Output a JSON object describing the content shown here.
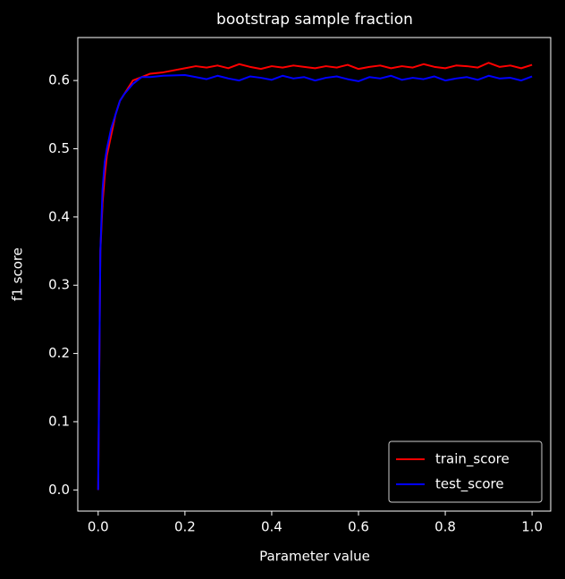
{
  "chart_data": {
    "type": "line",
    "title": "bootstrap sample fraction",
    "x_label": "Parameter value",
    "y_label": "f1 score",
    "x": [
      0,
      0.005,
      0.01,
      0.015,
      0.02,
      0.03,
      0.04,
      0.05,
      0.06,
      0.08,
      0.1,
      0.12,
      0.15,
      0.2,
      0.225,
      0.25,
      0.275,
      0.3,
      0.325,
      0.35,
      0.375,
      0.4,
      0.425,
      0.45,
      0.475,
      0.5,
      0.525,
      0.55,
      0.575,
      0.6,
      0.625,
      0.65,
      0.675,
      0.7,
      0.725,
      0.75,
      0.775,
      0.8,
      0.825,
      0.85,
      0.875,
      0.9,
      0.925,
      0.95,
      0.975,
      1.0
    ],
    "series": [
      {
        "name": "train_score",
        "color": "#ff0000",
        "values": [
          0,
          0.35,
          0.42,
          0.46,
          0.49,
          0.52,
          0.55,
          0.57,
          0.58,
          0.6,
          0.605,
          0.61,
          0.612,
          0.618,
          0.621,
          0.619,
          0.622,
          0.618,
          0.624,
          0.62,
          0.617,
          0.621,
          0.619,
          0.622,
          0.62,
          0.618,
          0.621,
          0.619,
          0.623,
          0.617,
          0.62,
          0.622,
          0.618,
          0.621,
          0.619,
          0.624,
          0.62,
          0.618,
          0.622,
          0.621,
          0.619,
          0.626,
          0.62,
          0.622,
          0.618,
          0.623
        ]
      },
      {
        "name": "test_score",
        "color": "#0000ff",
        "values": [
          0,
          0.35,
          0.44,
          0.48,
          0.5,
          0.53,
          0.55,
          0.57,
          0.58,
          0.595,
          0.605,
          0.605,
          0.607,
          0.608,
          0.605,
          0.602,
          0.607,
          0.603,
          0.6,
          0.606,
          0.604,
          0.601,
          0.607,
          0.603,
          0.605,
          0.6,
          0.604,
          0.606,
          0.602,
          0.599,
          0.605,
          0.603,
          0.607,
          0.601,
          0.604,
          0.602,
          0.606,
          0.6,
          0.603,
          0.605,
          0.601,
          0.607,
          0.603,
          0.604,
          0.6,
          0.606
        ]
      }
    ],
    "xlim": [
      -0.047,
      1.043
    ],
    "ylim": [
      -0.031,
      0.663
    ],
    "xticks": [
      {
        "value": 0,
        "label": "0.0"
      },
      0.2,
      0.4,
      0.6,
      0.8,
      {
        "value": 1,
        "label": "1.0"
      }
    ],
    "yticks": [
      {
        "value": 0,
        "label": "0.0"
      },
      0.1,
      0.2,
      0.3,
      0.4,
      0.5,
      0.6
    ],
    "legend": "lower right"
  }
}
